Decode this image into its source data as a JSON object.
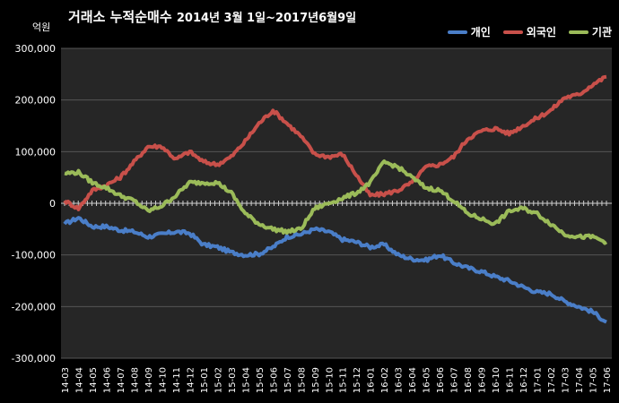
{
  "title_main": "거래소 누적순매수",
  "title_range": "2014년 3월 1일~2017년6월9일",
  "unit_label": "억원",
  "legend": [
    {
      "label": "개인",
      "color": "#4a7ec8"
    },
    {
      "label": "외국인",
      "color": "#c8504a"
    },
    {
      "label": "기관",
      "color": "#9bbb59"
    }
  ],
  "chart_data": {
    "type": "line",
    "title": "거래소 누적순매수 2014년 3월 1일~2017년6월9일",
    "ylabel": "억원",
    "ylim": [
      -300000,
      300000
    ],
    "yticks": [
      "300,000",
      "200,000",
      "100,000",
      "0",
      "-100,000",
      "-200,000",
      "-300,000"
    ],
    "ytick_values": [
      300000,
      200000,
      100000,
      0,
      -100000,
      -200000,
      -300000
    ],
    "categories": [
      "14-03",
      "14-04",
      "14-05",
      "14-06",
      "14-07",
      "14-08",
      "14-09",
      "14-10",
      "14-11",
      "14-12",
      "15-01",
      "15-02",
      "15-03",
      "15-04",
      "15-05",
      "15-06",
      "15-07",
      "15-08",
      "15-09",
      "15-10",
      "15-11",
      "15-12",
      "16-01",
      "16-02",
      "16-03",
      "16-04",
      "16-05",
      "16-06",
      "16-07",
      "16-08",
      "16-09",
      "16-10",
      "16-11",
      "16-12",
      "17-01",
      "17-02",
      "17-03",
      "17-04",
      "17-05",
      "17-06"
    ],
    "series": [
      {
        "name": "개인",
        "color": "#4a7ec8",
        "values": [
          -40000,
          -28000,
          -45000,
          -45000,
          -52000,
          -55000,
          -65000,
          -60000,
          -55000,
          -58000,
          -80000,
          -85000,
          -95000,
          -100000,
          -98000,
          -85000,
          -65000,
          -60000,
          -50000,
          -55000,
          -70000,
          -75000,
          -85000,
          -80000,
          -100000,
          -108000,
          -110000,
          -100000,
          -115000,
          -125000,
          -132000,
          -142000,
          -150000,
          -162000,
          -172000,
          -175000,
          -190000,
          -200000,
          -210000,
          -230000
        ]
      },
      {
        "name": "외국인",
        "color": "#c8504a",
        "values": [
          5000,
          -10000,
          25000,
          35000,
          50000,
          80000,
          110000,
          110000,
          85000,
          100000,
          80000,
          75000,
          90000,
          120000,
          155000,
          180000,
          155000,
          130000,
          95000,
          90000,
          95000,
          55000,
          15000,
          18000,
          25000,
          40000,
          70000,
          75000,
          90000,
          125000,
          140000,
          145000,
          135000,
          150000,
          165000,
          180000,
          205000,
          210000,
          230000,
          245000
        ]
      },
      {
        "name": "기관",
        "color": "#9bbb59",
        "values": [
          58000,
          60000,
          40000,
          30000,
          15000,
          5000,
          -15000,
          -5000,
          15000,
          40000,
          40000,
          40000,
          20000,
          -20000,
          -40000,
          -50000,
          -55000,
          -50000,
          -10000,
          0,
          10000,
          20000,
          40000,
          80000,
          70000,
          50000,
          30000,
          25000,
          5000,
          -20000,
          -30000,
          -40000,
          -15000,
          -10000,
          -20000,
          -40000,
          -60000,
          -65000,
          -65000,
          -75000
        ]
      }
    ]
  }
}
